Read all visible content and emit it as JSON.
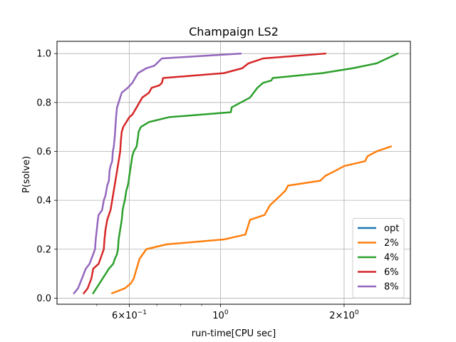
{
  "chart_data": {
    "type": "line",
    "title": "Champaign LS2",
    "xlabel": "run-time[CPU sec]",
    "ylabel": "P(solve)",
    "xscale": "log",
    "xlim": [
      0.4,
      2.9
    ],
    "ylim": [
      -0.025,
      1.05
    ],
    "grid": true,
    "legend_position": "lower-right",
    "x_ticks": [
      {
        "value": 0.6,
        "label": "6 × 10^-1"
      },
      {
        "value": 1.0,
        "label": "10^0"
      },
      {
        "value": 2.0,
        "label": "2 × 10^0"
      }
    ],
    "y_ticks": [
      {
        "value": 0.0,
        "label": "0.0"
      },
      {
        "value": 0.2,
        "label": "0.2"
      },
      {
        "value": 0.4,
        "label": "0.4"
      },
      {
        "value": 0.6,
        "label": "0.6"
      },
      {
        "value": 0.8,
        "label": "0.8"
      },
      {
        "value": 1.0,
        "label": "1.0"
      }
    ],
    "series": [
      {
        "name": "opt",
        "color": "#1f77b4",
        "points": []
      },
      {
        "name": "2%",
        "color": "#ff7f0e",
        "points": [
          [
            0.545,
            0.02
          ],
          [
            0.585,
            0.04
          ],
          [
            0.605,
            0.06
          ],
          [
            0.615,
            0.08
          ],
          [
            0.62,
            0.1
          ],
          [
            0.625,
            0.12
          ],
          [
            0.63,
            0.14
          ],
          [
            0.635,
            0.16
          ],
          [
            0.66,
            0.2
          ],
          [
            0.74,
            0.22
          ],
          [
            1.02,
            0.24
          ],
          [
            1.15,
            0.26
          ],
          [
            1.17,
            0.3
          ],
          [
            1.18,
            0.32
          ],
          [
            1.28,
            0.34
          ],
          [
            1.3,
            0.36
          ],
          [
            1.32,
            0.38
          ],
          [
            1.36,
            0.4
          ],
          [
            1.4,
            0.42
          ],
          [
            1.44,
            0.44
          ],
          [
            1.46,
            0.46
          ],
          [
            1.75,
            0.48
          ],
          [
            1.8,
            0.5
          ],
          [
            1.9,
            0.52
          ],
          [
            2.0,
            0.54
          ],
          [
            2.25,
            0.56
          ],
          [
            2.28,
            0.58
          ],
          [
            2.4,
            0.6
          ],
          [
            2.6,
            0.62
          ]
        ]
      },
      {
        "name": "4%",
        "color": "#2ca02c",
        "points": [
          [
            0.49,
            0.02
          ],
          [
            0.535,
            0.12
          ],
          [
            0.548,
            0.14
          ],
          [
            0.553,
            0.16
          ],
          [
            0.56,
            0.18
          ],
          [
            0.563,
            0.2
          ],
          [
            0.565,
            0.24
          ],
          [
            0.57,
            0.28
          ],
          [
            0.575,
            0.32
          ],
          [
            0.578,
            0.36
          ],
          [
            0.581,
            0.38
          ],
          [
            0.585,
            0.4
          ],
          [
            0.59,
            0.44
          ],
          [
            0.595,
            0.46
          ],
          [
            0.598,
            0.48
          ],
          [
            0.6,
            0.5
          ],
          [
            0.605,
            0.54
          ],
          [
            0.61,
            0.58
          ],
          [
            0.615,
            0.6
          ],
          [
            0.625,
            0.62
          ],
          [
            0.63,
            0.66
          ],
          [
            0.632,
            0.68
          ],
          [
            0.64,
            0.7
          ],
          [
            0.67,
            0.72
          ],
          [
            0.75,
            0.74
          ],
          [
            1.06,
            0.76
          ],
          [
            1.065,
            0.78
          ],
          [
            1.18,
            0.82
          ],
          [
            1.23,
            0.86
          ],
          [
            1.27,
            0.88
          ],
          [
            1.33,
            0.89
          ],
          [
            1.34,
            0.9
          ],
          [
            1.77,
            0.92
          ],
          [
            2.1,
            0.94
          ],
          [
            2.4,
            0.96
          ],
          [
            2.7,
            1.0
          ]
        ]
      },
      {
        "name": "6%",
        "color": "#d62728",
        "points": [
          [
            0.465,
            0.02
          ],
          [
            0.475,
            0.04
          ],
          [
            0.48,
            0.06
          ],
          [
            0.485,
            0.08
          ],
          [
            0.49,
            0.12
          ],
          [
            0.505,
            0.14
          ],
          [
            0.51,
            0.16
          ],
          [
            0.515,
            0.18
          ],
          [
            0.52,
            0.2
          ],
          [
            0.522,
            0.24
          ],
          [
            0.525,
            0.28
          ],
          [
            0.53,
            0.32
          ],
          [
            0.535,
            0.34
          ],
          [
            0.54,
            0.36
          ],
          [
            0.545,
            0.4
          ],
          [
            0.55,
            0.44
          ],
          [
            0.555,
            0.48
          ],
          [
            0.56,
            0.52
          ],
          [
            0.565,
            0.56
          ],
          [
            0.57,
            0.6
          ],
          [
            0.572,
            0.64
          ],
          [
            0.575,
            0.68
          ],
          [
            0.58,
            0.7
          ],
          [
            0.59,
            0.72
          ],
          [
            0.6,
            0.74
          ],
          [
            0.61,
            0.75
          ],
          [
            0.625,
            0.78
          ],
          [
            0.635,
            0.8
          ],
          [
            0.645,
            0.82
          ],
          [
            0.67,
            0.84
          ],
          [
            0.68,
            0.86
          ],
          [
            0.71,
            0.87
          ],
          [
            0.72,
            0.88
          ],
          [
            0.725,
            0.9
          ],
          [
            1.02,
            0.92
          ],
          [
            1.13,
            0.94
          ],
          [
            1.17,
            0.96
          ],
          [
            1.27,
            0.98
          ],
          [
            1.8,
            1.0
          ]
        ]
      },
      {
        "name": "8%",
        "color": "#9467bd",
        "points": [
          [
            0.44,
            0.02
          ],
          [
            0.45,
            0.04
          ],
          [
            0.455,
            0.06
          ],
          [
            0.46,
            0.08
          ],
          [
            0.465,
            0.1
          ],
          [
            0.47,
            0.12
          ],
          [
            0.48,
            0.14
          ],
          [
            0.485,
            0.16
          ],
          [
            0.49,
            0.18
          ],
          [
            0.495,
            0.2
          ],
          [
            0.497,
            0.24
          ],
          [
            0.5,
            0.28
          ],
          [
            0.503,
            0.32
          ],
          [
            0.505,
            0.34
          ],
          [
            0.515,
            0.36
          ],
          [
            0.52,
            0.4
          ],
          [
            0.525,
            0.42
          ],
          [
            0.53,
            0.46
          ],
          [
            0.535,
            0.48
          ],
          [
            0.537,
            0.52
          ],
          [
            0.54,
            0.54
          ],
          [
            0.545,
            0.56
          ],
          [
            0.547,
            0.6
          ],
          [
            0.55,
            0.62
          ],
          [
            0.553,
            0.66
          ],
          [
            0.555,
            0.7
          ],
          [
            0.557,
            0.74
          ],
          [
            0.56,
            0.78
          ],
          [
            0.565,
            0.8
          ],
          [
            0.57,
            0.82
          ],
          [
            0.575,
            0.84
          ],
          [
            0.595,
            0.86
          ],
          [
            0.61,
            0.88
          ],
          [
            0.63,
            0.92
          ],
          [
            0.66,
            0.94
          ],
          [
            0.69,
            0.95
          ],
          [
            0.7,
            0.96
          ],
          [
            0.72,
            0.98
          ],
          [
            1.12,
            1.0
          ]
        ]
      }
    ]
  }
}
